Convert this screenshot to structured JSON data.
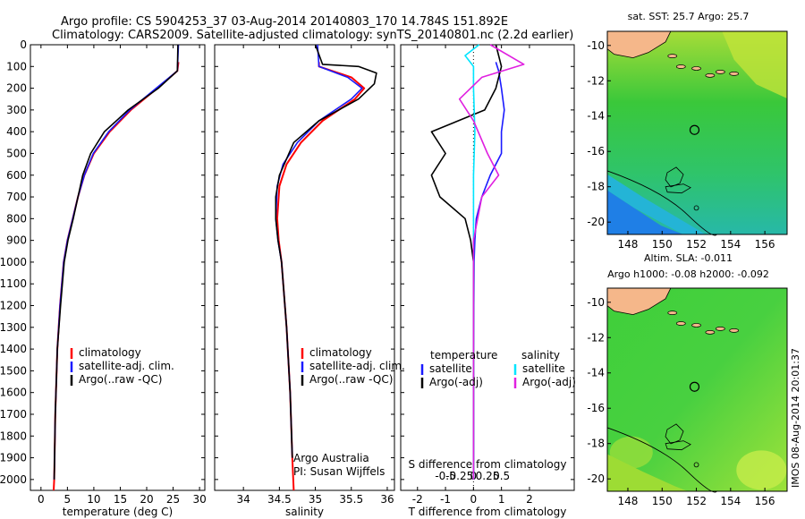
{
  "header": {
    "line1": "Argo profile: CS 5904253_37 03-Aug-2014 20140803_170 14.784S 151.892E",
    "line2": "Climatology: CARS2009. Satellite-adjusted climatology: synTS_20140801.nc (2.2d earlier)"
  },
  "side_label": "IMOS 08-Aug-2014 20:01:37",
  "colors": {
    "climatology": "#ff0000",
    "satellite": "#1a1aff",
    "argo": "#000000",
    "salinity_satellite": "#00e5ff",
    "salinity_argo": "#e020e0",
    "land": "#f5b78a",
    "ocean_mid": "#33cc33"
  },
  "chart_data": [
    {
      "type": "line",
      "xlabel": "temperature (deg C)",
      "xlim": [
        -2,
        31
      ],
      "xticks": [
        0,
        5,
        10,
        15,
        20,
        25,
        30
      ],
      "ylim": [
        0,
        2050
      ],
      "yticks": [
        0,
        100,
        200,
        300,
        400,
        500,
        600,
        700,
        800,
        900,
        1000,
        1100,
        1200,
        1300,
        1400,
        1500,
        1600,
        1700,
        1800,
        1900,
        2000
      ],
      "legend": {
        "placement": "middle-center",
        "entries": [
          "climatology",
          "satellite-adj. clim.",
          "Argo(..raw -QC)"
        ]
      },
      "series": [
        {
          "name": "climatology",
          "x": [
            26,
            25.8,
            22,
            17,
            13,
            10,
            8.2,
            7,
            6,
            5,
            4.3,
            3.6,
            3.1,
            2.7,
            2.5,
            2.4
          ],
          "y": [
            80,
            120,
            200,
            300,
            400,
            500,
            600,
            700,
            800,
            900,
            1000,
            1200,
            1400,
            1700,
            2000,
            2050
          ]
        },
        {
          "name": "satellite-adj. clim.",
          "x": [
            26,
            25.8,
            21.8,
            16.8,
            12.8,
            9.9,
            8.2,
            7,
            6,
            5,
            4.3,
            3.6,
            3.1,
            2.7,
            2.5
          ],
          "y": [
            0,
            120,
            200,
            300,
            400,
            500,
            600,
            700,
            800,
            900,
            1000,
            1200,
            1400,
            1700,
            2000
          ]
        },
        {
          "name": "Argo(..raw -QC)",
          "x": [
            25.9,
            25.8,
            22.2,
            16.5,
            12,
            9.4,
            7.9,
            7,
            6.1,
            5.1,
            4.4,
            3.7,
            3.1,
            2.7,
            2.5
          ],
          "y": [
            0,
            120,
            200,
            300,
            400,
            500,
            600,
            700,
            800,
            900,
            1000,
            1200,
            1400,
            1700,
            2000
          ]
        }
      ]
    },
    {
      "type": "line",
      "xlabel": "salinity",
      "xlim": [
        33.6,
        36.1
      ],
      "xticks": [
        34,
        34.5,
        35,
        35.5,
        36
      ],
      "ylim": [
        0,
        2050
      ],
      "legend": {
        "placement": "middle-right",
        "entries": [
          "climatology",
          "satellite-adj. clim.",
          "Argo(..raw -QC)"
        ]
      },
      "annotations": [
        "Argo Australia",
        "PI: Susan Wijffels"
      ],
      "series": [
        {
          "name": "climatology",
          "x": [
            35.05,
            35.05,
            35.5,
            35.68,
            35.55,
            35.1,
            34.8,
            34.6,
            34.5,
            34.47,
            34.49,
            34.53,
            34.6,
            34.65,
            34.68,
            34.7
          ],
          "y": [
            80,
            100,
            150,
            200,
            250,
            350,
            450,
            550,
            650,
            800,
            900,
            1000,
            1300,
            1600,
            1900,
            2050
          ]
        },
        {
          "name": "satellite-adj. clim.",
          "x": [
            35.03,
            35.05,
            35.45,
            35.65,
            35.5,
            35.05,
            34.75,
            34.55,
            34.47,
            34.45,
            34.48,
            34.53,
            34.6,
            34.65,
            34.68
          ],
          "y": [
            0,
            100,
            150,
            200,
            250,
            350,
            450,
            550,
            650,
            800,
            900,
            1000,
            1300,
            1600,
            1900
          ]
        },
        {
          "name": "Argo(..raw -QC)",
          "x": [
            35.0,
            35.1,
            35.6,
            35.85,
            35.82,
            35.6,
            35.05,
            34.7,
            34.5,
            34.45,
            34.45,
            34.48,
            34.53,
            34.6,
            34.65,
            34.68
          ],
          "y": [
            0,
            90,
            100,
            130,
            180,
            250,
            350,
            450,
            600,
            700,
            800,
            900,
            1000,
            1300,
            1600,
            1900
          ]
        }
      ]
    },
    {
      "type": "line",
      "xlabel": "T difference from climatology",
      "xlabel2": "S difference from climatology",
      "xlim": [
        -2.6,
        3.6
      ],
      "xticks": [
        -2,
        -1,
        0,
        1,
        2
      ],
      "xticks2": [
        "-0.5",
        "-0.25",
        "0",
        "0.25",
        "0.5"
      ],
      "ylim": [
        0,
        2050
      ],
      "legend": {
        "placement": "middle-center",
        "headers": [
          "temperature",
          "salinity"
        ],
        "entries": [
          "satellite",
          "Argo(-adj)",
          "satellite",
          "Argo(-adj)"
        ]
      },
      "series": [
        {
          "name": "temperature satellite",
          "x": [
            0.8,
            0.9,
            1.0,
            1.1,
            1.0,
            1.0,
            0.6,
            0.3,
            0.1,
            0.05,
            0.02,
            0.0,
            0.0
          ],
          "y": [
            80,
            120,
            200,
            300,
            400,
            500,
            600,
            700,
            800,
            900,
            1000,
            1400,
            2000
          ]
        },
        {
          "name": "temperature Argo(-adj)",
          "x": [
            0.8,
            1.0,
            0.8,
            0.4,
            -1.5,
            -1.0,
            -1.5,
            -1.2,
            -0.3,
            -0.1,
            0.0,
            0.0,
            0.0
          ],
          "y": [
            0,
            100,
            200,
            300,
            400,
            500,
            600,
            700,
            800,
            900,
            1000,
            1400,
            2000
          ]
        },
        {
          "name": "salinity satellite",
          "x": [
            0.2,
            -0.3,
            0.0,
            0.0,
            0.05,
            0.0,
            0.0,
            0.0,
            0.0
          ],
          "y": [
            0,
            50,
            100,
            200,
            400,
            600,
            1000,
            1500,
            2000
          ]
        },
        {
          "name": "salinity Argo(-adj)",
          "x": [
            0.6,
            1.8,
            0.3,
            -0.5,
            0.0,
            0.5,
            0.9,
            0.3,
            0.0,
            0.0,
            0.0
          ],
          "y": [
            0,
            90,
            150,
            250,
            350,
            500,
            600,
            700,
            900,
            1200,
            2000
          ]
        }
      ]
    },
    {
      "type": "heatmap",
      "title": "sat. SST: 25.7 Argo: 25.7",
      "xticks": [
        148,
        150,
        152,
        154,
        156
      ],
      "yticks": [
        -10,
        -12,
        -14,
        -16,
        -18,
        -20
      ],
      "xlim": [
        146.8,
        157.3
      ],
      "ylim": [
        -20.7,
        -9.2
      ],
      "marker": {
        "lon": 151.892,
        "lat": -14.784
      }
    },
    {
      "type": "heatmap",
      "title": "Altim. SLA: -0.011",
      "subtitle": "Argo h1000: -0.08 h2000: -0.092",
      "xticks": [
        148,
        150,
        152,
        154,
        156
      ],
      "yticks": [
        -10,
        -12,
        -14,
        -16,
        -18,
        -20
      ],
      "xlim": [
        146.8,
        157.3
      ],
      "ylim": [
        -20.7,
        -9.2
      ],
      "marker": {
        "lon": 151.892,
        "lat": -14.784
      }
    }
  ]
}
